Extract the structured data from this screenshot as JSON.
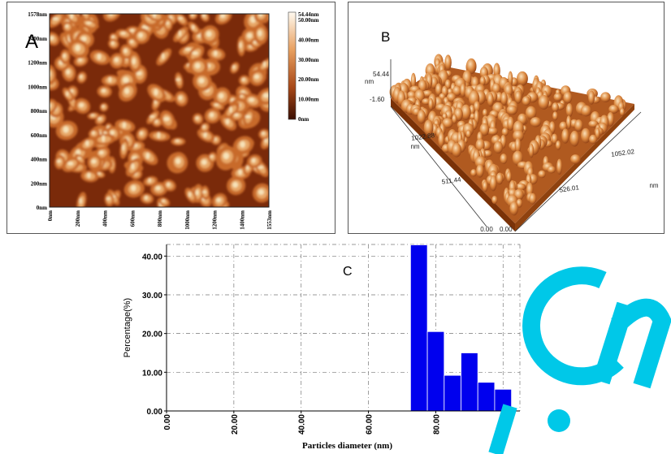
{
  "panel_a": {
    "letter": "A",
    "y_ticks": [
      "1578nm",
      "1400nm",
      "1200nm",
      "1000nm",
      "800nm",
      "600nm",
      "400nm",
      "200nm",
      "0nm"
    ],
    "x_ticks": [
      "0nm",
      "200nm",
      "400nm",
      "600nm",
      "800nm",
      "1000nm",
      "1200nm",
      "1400nm",
      "1553nm"
    ],
    "colorbar_ticks": [
      "54.44nm",
      "50.00nm",
      "40.00nm",
      "30.00nm",
      "20.00nm",
      "10.00nm",
      "0nm"
    ],
    "colors": {
      "dark": "#7a2a0a",
      "mid": "#c86a2a",
      "light": "#f6e2b8"
    }
  },
  "panel_b": {
    "letter": "B",
    "z_top": "54.44",
    "z_unit": "nm",
    "z_bottom": "-1.60",
    "left_axis_top": "1022.88",
    "left_axis_unit": "nm",
    "left_axis_mid": "511.44",
    "left_axis_zero": "0.00",
    "right_axis_top": "1052.02",
    "right_axis_mid": "526.01",
    "right_axis_zero": "0.00",
    "right_axis_unit": "nm"
  },
  "panel_c": {
    "letter": "C",
    "chart_data": {
      "type": "bar",
      "xlabel": "Particles diameter (nm)",
      "ylabel": "Percentage(%)",
      "x_ticks": [
        "0.00",
        "20.00",
        "40.00",
        "60.00",
        "80.00",
        "100.00"
      ],
      "y_ticks": [
        "0.00",
        "10.00",
        "20.00",
        "30.00",
        "40.00"
      ],
      "xlim": [
        0,
        105
      ],
      "ylim": [
        0,
        43
      ],
      "bin_width": 5,
      "bins_start": [
        72.5,
        77.5,
        82.5,
        87.5,
        92.5,
        97.5
      ],
      "values": [
        42.9,
        20.5,
        9.2,
        15.0,
        7.4,
        5.6
      ],
      "bar_color": "#0000ee",
      "grid": true
    }
  },
  "watermark": {
    "text": ".cn",
    "color": "#00c8e8"
  }
}
